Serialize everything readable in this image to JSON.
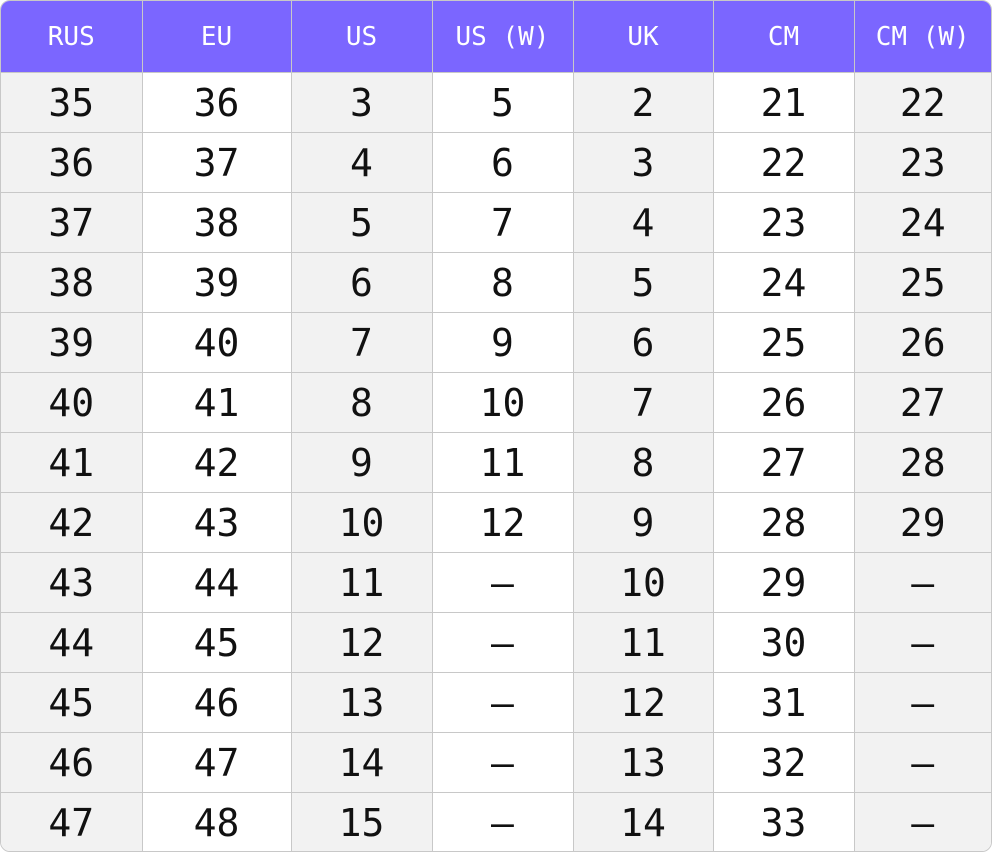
{
  "colors": {
    "header_bg": "#7b66ff",
    "header_text": "#ffffff",
    "shaded_column": "#f2f2f2",
    "border": "#c8c8c8"
  },
  "table": {
    "headers": [
      "RUS",
      "EU",
      "US",
      "US (W)",
      "UK",
      "CM",
      "CM (W)"
    ],
    "rows": [
      [
        "35",
        "36",
        "3",
        "5",
        "2",
        "21",
        "22"
      ],
      [
        "36",
        "37",
        "4",
        "6",
        "3",
        "22",
        "23"
      ],
      [
        "37",
        "38",
        "5",
        "7",
        "4",
        "23",
        "24"
      ],
      [
        "38",
        "39",
        "6",
        "8",
        "5",
        "24",
        "25"
      ],
      [
        "39",
        "40",
        "7",
        "9",
        "6",
        "25",
        "26"
      ],
      [
        "40",
        "41",
        "8",
        "10",
        "7",
        "26",
        "27"
      ],
      [
        "41",
        "42",
        "9",
        "11",
        "8",
        "27",
        "28"
      ],
      [
        "42",
        "43",
        "10",
        "12",
        "9",
        "28",
        "29"
      ],
      [
        "43",
        "44",
        "11",
        "–",
        "10",
        "29",
        "–"
      ],
      [
        "44",
        "45",
        "12",
        "–",
        "11",
        "30",
        "–"
      ],
      [
        "45",
        "46",
        "13",
        "–",
        "12",
        "31",
        "–"
      ],
      [
        "46",
        "47",
        "14",
        "–",
        "13",
        "32",
        "–"
      ],
      [
        "47",
        "48",
        "15",
        "–",
        "14",
        "33",
        "–"
      ]
    ]
  }
}
